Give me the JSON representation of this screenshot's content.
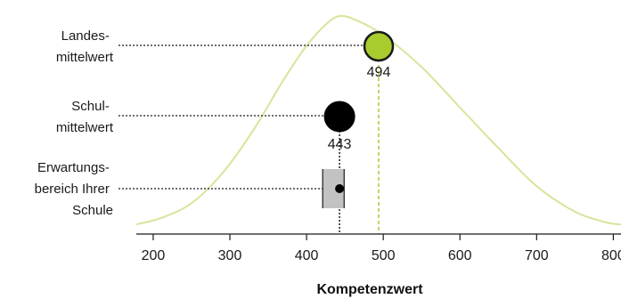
{
  "chart_data": {
    "type": "line",
    "xlabel": "Kompetenzwert",
    "xlim": [
      178,
      810
    ],
    "ticks": [
      200,
      300,
      400,
      500,
      600,
      700,
      800
    ],
    "distribution": {
      "color": "#d6e59a",
      "peak_x": 443,
      "curve": [
        [
          178,
          0.02
        ],
        [
          210,
          0.05
        ],
        [
          250,
          0.12
        ],
        [
          290,
          0.26
        ],
        [
          330,
          0.46
        ],
        [
          370,
          0.7
        ],
        [
          400,
          0.86
        ],
        [
          425,
          0.96
        ],
        [
          443,
          1.0
        ],
        [
          465,
          0.98
        ],
        [
          500,
          0.91
        ],
        [
          550,
          0.76
        ],
        [
          600,
          0.57
        ],
        [
          650,
          0.38
        ],
        [
          700,
          0.2
        ],
        [
          750,
          0.08
        ],
        [
          790,
          0.03
        ],
        [
          810,
          0.02
        ]
      ]
    },
    "markers": [
      {
        "key": "landes",
        "label_lines": [
          "Landes-",
          "mittelwert"
        ],
        "value": 494,
        "value_label": "494",
        "color": "#a8cc2e",
        "stroke": "#1a1a1a",
        "drop_line_color": "#a8cc2e"
      },
      {
        "key": "schul",
        "label_lines": [
          "Schul-",
          "mittelwert"
        ],
        "value": 443,
        "value_label": "443",
        "color": "#000000",
        "stroke": "#000000",
        "drop_line_color": "#1a1a1a"
      },
      {
        "key": "erwartung",
        "label_lines": [
          "Erwartungs-",
          "bereich Ihrer",
          "Schule"
        ],
        "range": [
          421,
          449
        ],
        "point": 443,
        "fill": "#c2c2c2"
      }
    ]
  }
}
